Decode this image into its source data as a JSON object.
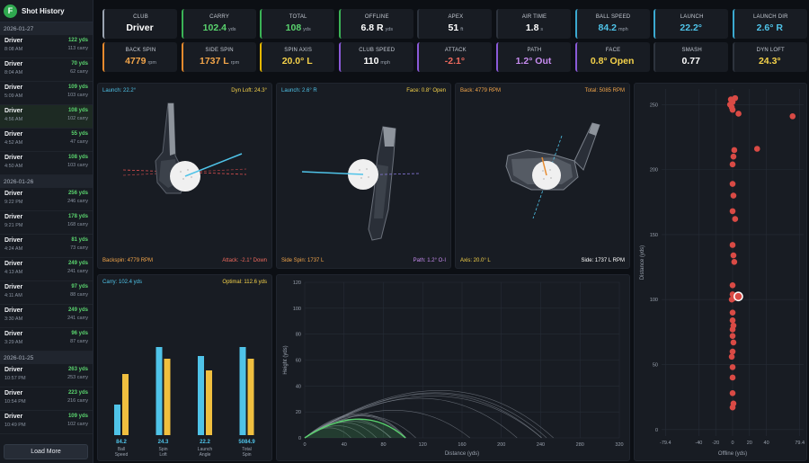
{
  "sidebar": {
    "logo_letter": "F",
    "title": "Shot History",
    "groups": [
      {
        "date": "2026-01-27",
        "shots": [
          {
            "club": "Driver",
            "time": "8:08 AM",
            "yds": "122 yds",
            "carry": "113 carry"
          },
          {
            "club": "Driver",
            "time": "8:04 AM",
            "yds": "70 yds",
            "carry": "62 carry"
          },
          {
            "club": "Driver",
            "time": "5:09 AM",
            "yds": "109 yds",
            "carry": "103 carry"
          },
          {
            "club": "Driver",
            "time": "4:56 AM",
            "yds": "108 yds",
            "carry": "102 carry"
          },
          {
            "club": "Driver",
            "time": "4:52 AM",
            "yds": "55 yds",
            "carry": "47 carry"
          },
          {
            "club": "Driver",
            "time": "4:50 AM",
            "yds": "108 yds",
            "carry": "103 carry"
          }
        ]
      },
      {
        "date": "2026-01-26",
        "shots": [
          {
            "club": "Driver",
            "time": "9:22 PM",
            "yds": "256 yds",
            "carry": "246 carry"
          },
          {
            "club": "Driver",
            "time": "9:21 PM",
            "yds": "178 yds",
            "carry": "168 carry"
          },
          {
            "club": "Driver",
            "time": "4:24 AM",
            "yds": "81 yds",
            "carry": "73 carry"
          },
          {
            "club": "Driver",
            "time": "4:13 AM",
            "yds": "249 yds",
            "carry": "241 carry"
          },
          {
            "club": "Driver",
            "time": "4:11 AM",
            "yds": "97 yds",
            "carry": "88 carry"
          },
          {
            "club": "Driver",
            "time": "3:30 AM",
            "yds": "249 yds",
            "carry": "241 carry"
          },
          {
            "club": "Driver",
            "time": "3:29 AM",
            "yds": "96 yds",
            "carry": "87 carry"
          }
        ]
      },
      {
        "date": "2026-01-25",
        "shots": [
          {
            "club": "Driver",
            "time": "10:57 PM",
            "yds": "263 yds",
            "carry": "253 carry"
          },
          {
            "club": "Driver",
            "time": "10:54 PM",
            "yds": "223 yds",
            "carry": "216 carry"
          },
          {
            "club": "Driver",
            "time": "10:49 PM",
            "yds": "109 yds",
            "carry": "102 carry"
          }
        ]
      }
    ],
    "load_more": "Load More"
  },
  "metrics": [
    {
      "label": "CLUB",
      "value": "Driver",
      "unit": "",
      "color": "#ffffff",
      "border": "#9aa3b0"
    },
    {
      "label": "CARRY",
      "value": "102.4",
      "unit": "yds",
      "color": "#5ad36e",
      "border": "#3bb356"
    },
    {
      "label": "TOTAL",
      "value": "108",
      "unit": "yds",
      "color": "#5ad36e",
      "border": "#3bb356"
    },
    {
      "label": "OFFLINE",
      "value": "6.8 R",
      "unit": "yds",
      "color": "#ffffff",
      "border": "#3bb356"
    },
    {
      "label": "APEX",
      "value": "51",
      "unit": "ft",
      "color": "#ffffff",
      "border": "#2d333d"
    },
    {
      "label": "AIR TIME",
      "value": "1.8",
      "unit": "s",
      "color": "#ffffff",
      "border": "#2d333d"
    },
    {
      "label": "BALL SPEED",
      "value": "84.2",
      "unit": "mph",
      "color": "#4fc3e8",
      "border": "#3ba9d0"
    },
    {
      "label": "LAUNCH",
      "value": "22.2°",
      "unit": "",
      "color": "#4fc3e8",
      "border": "#3ba9d0"
    },
    {
      "label": "LAUNCH DIR",
      "value": "2.6° R",
      "unit": "",
      "color": "#4fc3e8",
      "border": "#3ba9d0"
    },
    {
      "label": "BACK SPIN",
      "value": "4779",
      "unit": "rpm",
      "color": "#f2a54a",
      "border": "#e68a2e"
    },
    {
      "label": "SIDE SPIN",
      "value": "1737 L",
      "unit": "rpm",
      "color": "#f2a54a",
      "border": "#e68a2e"
    },
    {
      "label": "SPIN AXIS",
      "value": "20.0° L",
      "unit": "",
      "color": "#f5d24a",
      "border": "#e6b800"
    },
    {
      "label": "CLUB SPEED",
      "value": "110",
      "unit": "mph",
      "color": "#ffffff",
      "border": "#8a5ad8"
    },
    {
      "label": "ATTACK",
      "value": "-2.1°",
      "unit": "",
      "color": "#ef6a5e",
      "border": "#8a5ad8"
    },
    {
      "label": "PATH",
      "value": "1.2° Out",
      "unit": "",
      "color": "#c78cf0",
      "border": "#8a5ad8"
    },
    {
      "label": "FACE",
      "value": "0.8° Open",
      "unit": "",
      "color": "#f5d24a",
      "border": "#8a5ad8"
    },
    {
      "label": "SMASH",
      "value": "0.77",
      "unit": "",
      "color": "#ffffff",
      "border": "#2d333d"
    },
    {
      "label": "DYN LOFT",
      "value": "24.3°",
      "unit": "",
      "color": "#f5d24a",
      "border": "#2d333d"
    }
  ],
  "panels": {
    "side_view": {
      "tl": "Launch: 22.2°",
      "tr": "Dyn Loft: 24.3°",
      "bl": "Backspin: 4779 RPM",
      "br": "Attack: -2.1° Down"
    },
    "face_view": {
      "tl": "Launch: 2.6° R",
      "tr": "Face: 0.8° Open",
      "bl": "Side Spin: 1737 L",
      "br": "Path: 1.2° O-I"
    },
    "spin_view": {
      "tl": "Back: 4779 RPM",
      "tr": "Total: 5085 RPM",
      "bl": "Axis: 20.0° L",
      "br": "Side: 1737 L RPM"
    },
    "bars": {
      "tl": "Carry: 102.4 yds",
      "tr": "Optimal: 112.6 yds"
    }
  },
  "colors": {
    "cyan": "#4fc3e8",
    "yellow": "#f0bf3f",
    "green": "#5ad36e",
    "red": "#d94a45",
    "purple": "#8a7ae0",
    "orange": "#e68a2e"
  },
  "bar_chart": {
    "type": "bar",
    "categories": [
      {
        "value": "84.2",
        "label": [
          "Ball",
          "Speed"
        ]
      },
      {
        "value": "24.3",
        "label": [
          "Spin",
          "Loft"
        ]
      },
      {
        "value": "22.2",
        "label": [
          "Launch",
          "Angle"
        ]
      },
      {
        "value": "5084.9",
        "label": [
          "Total",
          "Spin"
        ]
      }
    ],
    "actual_pct": [
      0.34,
      0.98,
      0.88,
      0.98
    ],
    "optimal_pct": [
      0.68,
      0.85,
      0.72,
      0.85
    ]
  },
  "trajectory_chart": {
    "type": "line",
    "xlabel": "Distance (yds)",
    "ylabel": "Height (yds)",
    "xlim": [
      0,
      320
    ],
    "ylim": [
      0,
      120
    ],
    "xticks": [
      0,
      40,
      80,
      120,
      160,
      200,
      240,
      280,
      320
    ],
    "yticks": [
      0,
      20,
      40,
      60,
      80,
      100,
      120
    ],
    "background_shots": [
      [
        113,
        20
      ],
      [
        62,
        11
      ],
      [
        103,
        22
      ],
      [
        47,
        9
      ],
      [
        103,
        21
      ],
      [
        246,
        41
      ],
      [
        168,
        25
      ],
      [
        73,
        14
      ],
      [
        241,
        38
      ],
      [
        88,
        15
      ],
      [
        241,
        40
      ],
      [
        87,
        17
      ],
      [
        253,
        43
      ],
      [
        216,
        36
      ],
      [
        102,
        20
      ]
    ],
    "current_shot": [
      102.4,
      17
    ]
  },
  "dispersion_chart": {
    "type": "scatter",
    "xlabel": "Offline (yds)",
    "ylabel": "Distance (yds)",
    "xlim": [
      -84,
      84
    ],
    "ylim": [
      -5,
      262
    ],
    "xticks": [
      "-79.4",
      "-40",
      "-20",
      "0",
      "20",
      "40",
      "79.4"
    ],
    "xtick_vals": [
      -79.4,
      -40,
      -20,
      0,
      20,
      40,
      79.4
    ],
    "yticks": [
      0,
      50,
      100,
      150,
      200,
      250
    ],
    "points": [
      [
        -2,
        254
      ],
      [
        0,
        252
      ],
      [
        3,
        255
      ],
      [
        -3,
        250
      ],
      [
        -1,
        248
      ],
      [
        0,
        246
      ],
      [
        7,
        243
      ],
      [
        71,
        241
      ],
      [
        29,
        216
      ],
      [
        2,
        215
      ],
      [
        1,
        210
      ],
      [
        0,
        204
      ],
      [
        0,
        189
      ],
      [
        1,
        180
      ],
      [
        0,
        168
      ],
      [
        3,
        162
      ],
      [
        0,
        142
      ],
      [
        1,
        134
      ],
      [
        2,
        129
      ],
      [
        0,
        111
      ],
      [
        0,
        104
      ],
      [
        1,
        101
      ],
      [
        -1,
        100
      ],
      [
        0,
        90
      ],
      [
        0,
        84
      ],
      [
        1,
        80
      ],
      [
        0,
        77
      ],
      [
        0,
        72
      ],
      [
        1,
        67
      ],
      [
        0,
        60
      ],
      [
        -1,
        56
      ],
      [
        0,
        48
      ],
      [
        0,
        40
      ],
      [
        0,
        28
      ],
      [
        1,
        20
      ],
      [
        0,
        17
      ]
    ],
    "current": [
      6.8,
      102.4
    ]
  }
}
